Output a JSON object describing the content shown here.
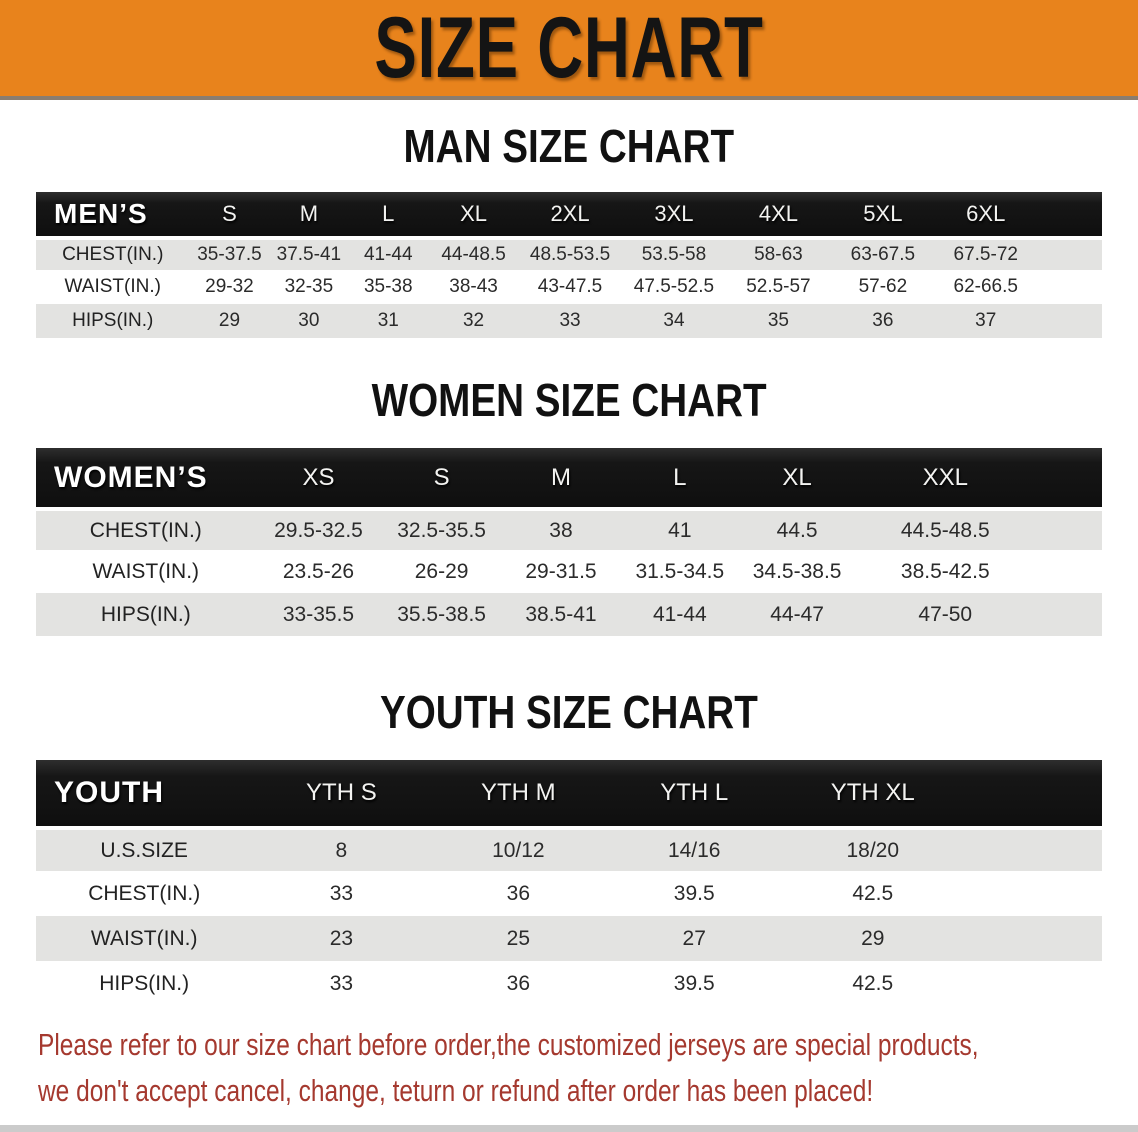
{
  "banner": {
    "title": "SIZE CHART",
    "bg_color": "#e8831c",
    "text_color": "#141414"
  },
  "colors": {
    "header_bar": "#161616",
    "stripe_row": "#e3e3e1",
    "disclaimer_red": "#a5392f"
  },
  "sections": [
    {
      "heading": "MAN SIZE CHART",
      "label": "MEN’S",
      "columns": [
        "S",
        "M",
        "L",
        "XL",
        "2XL",
        "3XL",
        "4XL",
        "5XL",
        "6XL"
      ],
      "rows": [
        {
          "label": "CHEST(IN.)",
          "values": [
            "35-37.5",
            "37.5-41",
            "41-44",
            "44-48.5",
            "48.5-53.5",
            "53.5-58",
            "58-63",
            "63-67.5",
            "67.5-72"
          ]
        },
        {
          "label": "WAIST(IN.)",
          "values": [
            "29-32",
            "32-35",
            "35-38",
            "38-43",
            "43-47.5",
            "47.5-52.5",
            "52.5-57",
            "57-62",
            "62-66.5"
          ]
        },
        {
          "label": "HIPS(IN.)",
          "values": [
            "29",
            "30",
            "31",
            "32",
            "33",
            "34",
            "35",
            "36",
            "37"
          ]
        }
      ]
    },
    {
      "heading": "WOMEN SIZE CHART",
      "label": "WOMEN’S",
      "columns": [
        "XS",
        "S",
        "M",
        "L",
        "XL",
        "XXL"
      ],
      "rows": [
        {
          "label": "CHEST(IN.)",
          "values": [
            "29.5-32.5",
            "32.5-35.5",
            "38",
            "41",
            "44.5",
            "44.5-48.5"
          ]
        },
        {
          "label": "WAIST(IN.)",
          "values": [
            "23.5-26",
            "26-29",
            "29-31.5",
            "31.5-34.5",
            "34.5-38.5",
            "38.5-42.5"
          ]
        },
        {
          "label": "HIPS(IN.)",
          "values": [
            "33-35.5",
            "35.5-38.5",
            "38.5-41",
            "41-44",
            "44-47",
            "47-50"
          ]
        }
      ]
    },
    {
      "heading": "YOUTH SIZE CHART",
      "label": "YOUTH",
      "columns": [
        "YTH S",
        "YTH M",
        "YTH L",
        "YTH XL"
      ],
      "rows": [
        {
          "label": "U.S.SIZE",
          "values": [
            "8",
            "10/12",
            "14/16",
            "18/20"
          ]
        },
        {
          "label": "CHEST(IN.)",
          "values": [
            "33",
            "36",
            "39.5",
            "42.5"
          ]
        },
        {
          "label": "WAIST(IN.)",
          "values": [
            "23",
            "25",
            "27",
            "29"
          ]
        },
        {
          "label": "HIPS(IN.)",
          "values": [
            "33",
            "36",
            "39.5",
            "42.5"
          ]
        }
      ]
    }
  ],
  "disclaimer": {
    "line1": "Please refer to our size chart before order,the customized jerseys are special products,",
    "line2": "we don't accept cancel, change, teturn or refund after order has been placed!"
  }
}
